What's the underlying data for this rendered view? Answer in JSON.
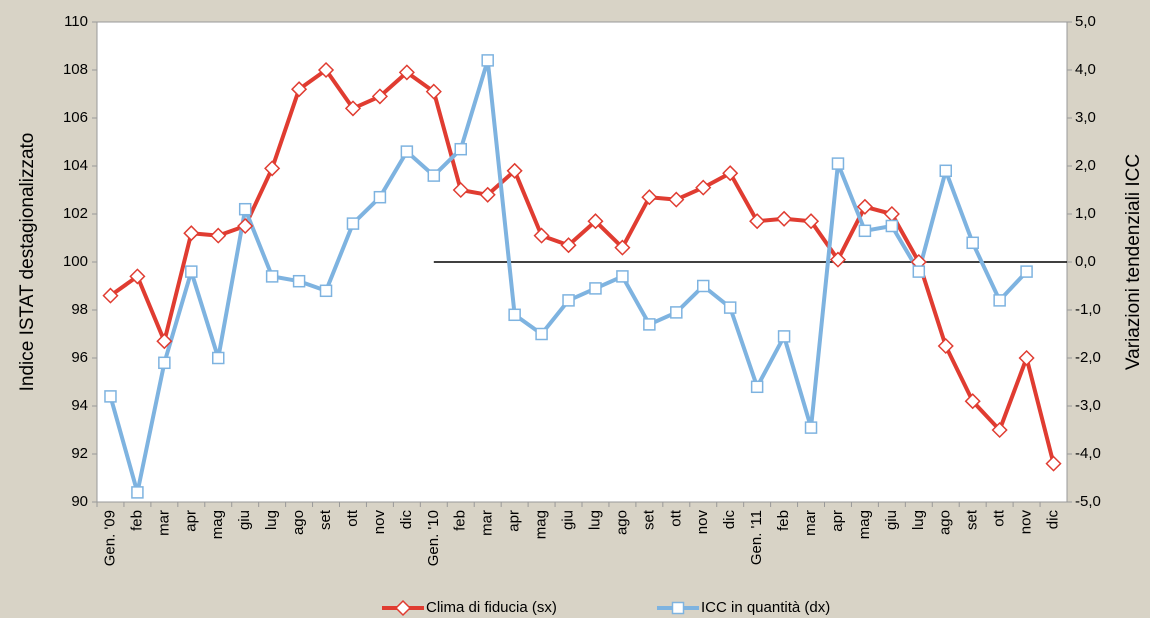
{
  "chart_data": {
    "type": "line",
    "categories": [
      "Gen. '09",
      "feb",
      "mar",
      "apr",
      "mag",
      "giu",
      "lug",
      "ago",
      "set",
      "ott",
      "nov",
      "dic",
      "Gen. '10",
      "feb",
      "mar",
      "apr",
      "mag",
      "giu",
      "lug",
      "ago",
      "set",
      "ott",
      "nov",
      "dic",
      "Gen. '11",
      "feb",
      "mar",
      "apr",
      "mag",
      "giu",
      "lug",
      "ago",
      "set",
      "ott",
      "nov",
      "dic"
    ],
    "series": [
      {
        "name": "Clima di fiducia (sx)",
        "color": "#e03c31",
        "marker": "diamond",
        "values": [
          98.6,
          99.4,
          96.7,
          101.2,
          101.1,
          101.5,
          103.9,
          107.2,
          108.0,
          106.4,
          106.9,
          107.9,
          107.1,
          103.0,
          102.8,
          103.8,
          101.1,
          100.7,
          101.7,
          100.6,
          102.7,
          102.6,
          103.1,
          103.7,
          101.7,
          101.8,
          101.7,
          100.1,
          102.3,
          102.0,
          100.0,
          96.5,
          94.2,
          93.0,
          96.0,
          91.6
        ]
      },
      {
        "name": "ICC in quantità (dx)",
        "color": "#7eb3e0",
        "marker": "square",
        "axis": "y2",
        "values": [
          -2.8,
          -4.8,
          -2.1,
          -0.2,
          -2.0,
          1.1,
          -0.3,
          -0.4,
          -0.6,
          0.8,
          1.35,
          2.3,
          1.8,
          2.35,
          4.2,
          -1.1,
          -1.5,
          -0.8,
          -0.55,
          -0.3,
          -1.3,
          -1.05,
          -0.5,
          -0.95,
          -2.6,
          -1.55,
          -3.45,
          2.05,
          0.65,
          0.75,
          -0.2,
          1.9,
          0.4,
          -0.8,
          -0.2,
          null
        ]
      }
    ],
    "ylabel": "Indice ISTAT destagionalizzato",
    "y2label": "Variazioni tendenziali ICC",
    "ylim": [
      90,
      110
    ],
    "yticks": [
      90,
      92,
      94,
      96,
      98,
      100,
      102,
      104,
      106,
      108,
      110
    ],
    "y2lim": [
      -5,
      5
    ],
    "y2ticks": [
      {
        "value": -5,
        "label": "-5,0"
      },
      {
        "value": -4,
        "label": "-4,0"
      },
      {
        "value": -3,
        "label": "-3,0"
      },
      {
        "value": -2,
        "label": "-2,0"
      },
      {
        "value": -1,
        "label": "-1,0"
      },
      {
        "value": 0,
        "label": "0,0"
      },
      {
        "value": 1,
        "label": "1,0"
      },
      {
        "value": 2,
        "label": "2,0"
      },
      {
        "value": 3,
        "label": "3,0"
      },
      {
        "value": 4,
        "label": "4,0"
      },
      {
        "value": 5,
        "label": "5,0"
      }
    ],
    "legend": "bottom"
  }
}
